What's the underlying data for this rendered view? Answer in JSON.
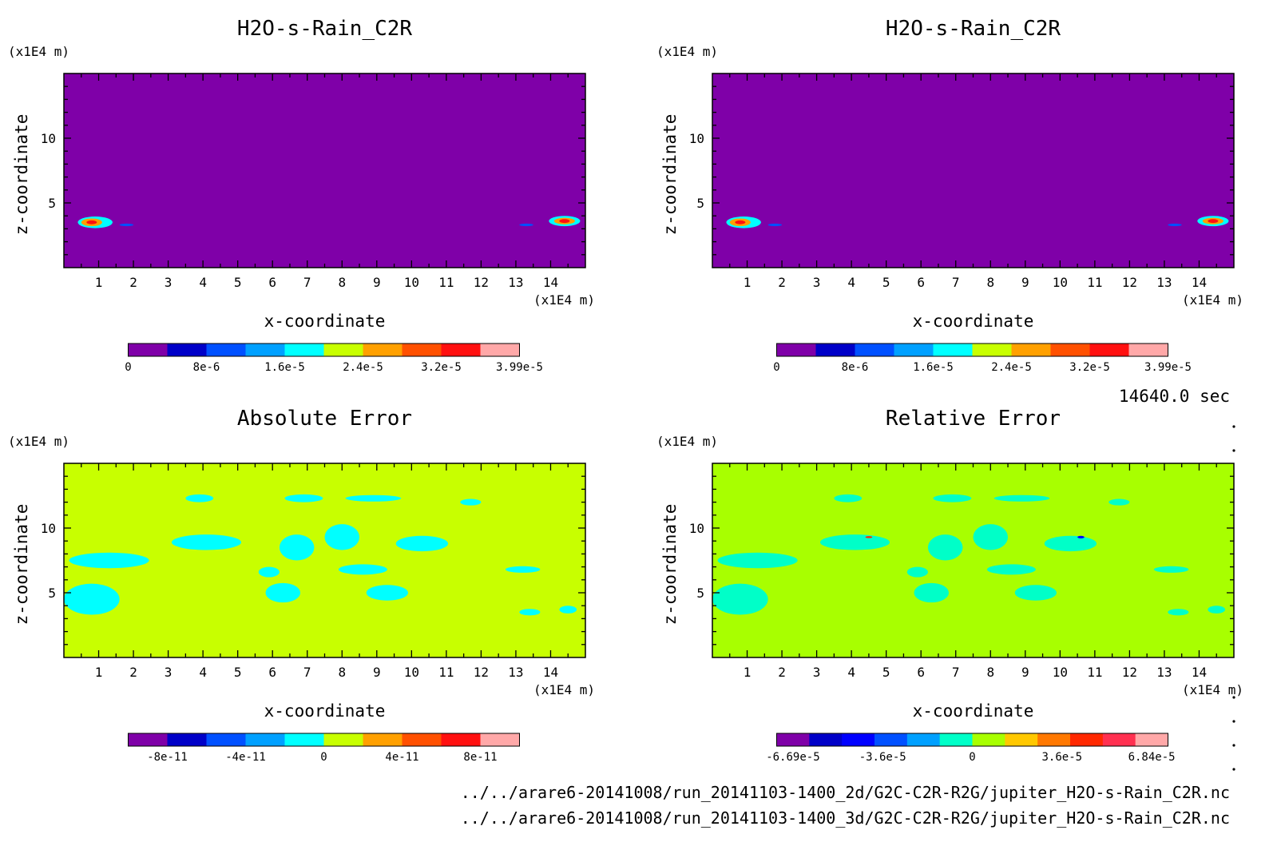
{
  "footer": {
    "time": "14640.0 sec",
    "path_2d": "../../arare6-20141008/run_20141103-1400_2d/G2C-C2R-R2G/jupiter_H2O-s-Rain_C2R.nc",
    "path_3d": "../../arare6-20141008/run_20141103-1400_3d/G2C-C2R-R2G/jupiter_H2O-s-Rain_C2R.nc"
  },
  "chart_data": [
    {
      "type": "heatmap",
      "title": "H2O-s-Rain_C2R",
      "xlabel": "x-coordinate",
      "ylabel": "z-coordinate",
      "x_unit": "(x1E4 m)",
      "y_unit": "(x1E4 m)",
      "xlim": [
        0,
        15
      ],
      "ylim": [
        0,
        15
      ],
      "x_ticks": [
        1,
        2,
        3,
        4,
        5,
        6,
        7,
        8,
        9,
        10,
        11,
        12,
        13,
        14
      ],
      "y_ticks": [
        5,
        10
      ],
      "background": "#7f00a8",
      "colorbar": {
        "colors": [
          "#7f00a8",
          "#0000c8",
          "#0050ff",
          "#00a0ff",
          "#00ffff",
          "#c8ff00",
          "#ffa000",
          "#ff5000",
          "#ff1010",
          "#ffa8a8"
        ],
        "tick_labels": [
          "0",
          "8e-6",
          "1.6e-5",
          "2.4e-5",
          "3.2e-5",
          "3.99e-5"
        ],
        "min": 0,
        "max": 3.99e-05
      },
      "features": [
        {
          "x": 0.9,
          "z": 3.5,
          "w": 1.0,
          "h": 0.9,
          "color": "#00ffff"
        },
        {
          "x": 0.8,
          "z": 3.5,
          "w": 0.6,
          "h": 0.6,
          "color": "#ffa000"
        },
        {
          "x": 0.8,
          "z": 3.5,
          "w": 0.3,
          "h": 0.3,
          "color": "#ff1010"
        },
        {
          "x": 1.8,
          "z": 3.3,
          "w": 0.4,
          "h": 0.2,
          "color": "#0050ff"
        },
        {
          "x": 13.3,
          "z": 3.3,
          "w": 0.4,
          "h": 0.2,
          "color": "#0050ff"
        },
        {
          "x": 14.4,
          "z": 3.6,
          "w": 0.9,
          "h": 0.8,
          "color": "#00ffff"
        },
        {
          "x": 14.4,
          "z": 3.6,
          "w": 0.6,
          "h": 0.5,
          "color": "#ffa000"
        },
        {
          "x": 14.4,
          "z": 3.6,
          "w": 0.3,
          "h": 0.3,
          "color": "#ff1010"
        }
      ]
    },
    {
      "type": "heatmap",
      "title": "H2O-s-Rain_C2R",
      "xlabel": "x-coordinate",
      "ylabel": "z-coordinate",
      "x_unit": "(x1E4 m)",
      "y_unit": "(x1E4 m)",
      "xlim": [
        0,
        15
      ],
      "ylim": [
        0,
        15
      ],
      "x_ticks": [
        1,
        2,
        3,
        4,
        5,
        6,
        7,
        8,
        9,
        10,
        11,
        12,
        13,
        14
      ],
      "y_ticks": [
        5,
        10
      ],
      "background": "#7f00a8",
      "colorbar": {
        "colors": [
          "#7f00a8",
          "#0000c8",
          "#0050ff",
          "#00a0ff",
          "#00ffff",
          "#c8ff00",
          "#ffa000",
          "#ff5000",
          "#ff1010",
          "#ffa8a8"
        ],
        "tick_labels": [
          "0",
          "8e-6",
          "1.6e-5",
          "2.4e-5",
          "3.2e-5",
          "3.99e-5"
        ],
        "min": 0,
        "max": 3.99e-05
      },
      "features": [
        {
          "x": 0.9,
          "z": 3.5,
          "w": 1.0,
          "h": 0.9,
          "color": "#00ffff"
        },
        {
          "x": 0.8,
          "z": 3.5,
          "w": 0.6,
          "h": 0.6,
          "color": "#ffa000"
        },
        {
          "x": 0.8,
          "z": 3.5,
          "w": 0.3,
          "h": 0.3,
          "color": "#ff1010"
        },
        {
          "x": 1.8,
          "z": 3.3,
          "w": 0.4,
          "h": 0.2,
          "color": "#0050ff"
        },
        {
          "x": 13.3,
          "z": 3.3,
          "w": 0.4,
          "h": 0.2,
          "color": "#0050ff"
        },
        {
          "x": 14.4,
          "z": 3.6,
          "w": 0.9,
          "h": 0.8,
          "color": "#00ffff"
        },
        {
          "x": 14.4,
          "z": 3.6,
          "w": 0.6,
          "h": 0.5,
          "color": "#ffa000"
        },
        {
          "x": 14.4,
          "z": 3.6,
          "w": 0.3,
          "h": 0.3,
          "color": "#ff1010"
        }
      ]
    },
    {
      "type": "heatmap",
      "title": "Absolute Error",
      "xlabel": "x-coordinate",
      "ylabel": "z-coordinate",
      "x_unit": "(x1E4 m)",
      "y_unit": "(x1E4 m)",
      "xlim": [
        0,
        15
      ],
      "ylim": [
        0,
        15
      ],
      "x_ticks": [
        1,
        2,
        3,
        4,
        5,
        6,
        7,
        8,
        9,
        10,
        11,
        12,
        13,
        14
      ],
      "y_ticks": [
        5,
        10
      ],
      "background": "#c8ff00",
      "colorbar": {
        "colors": [
          "#7f00a8",
          "#0000c8",
          "#0050ff",
          "#00a0ff",
          "#00ffff",
          "#c8ff00",
          "#ffa000",
          "#ff5000",
          "#ff1010",
          "#ffa8a8"
        ],
        "tick_labels": [
          "-8e-11",
          "-4e-11",
          "0",
          "4e-11",
          "8e-11"
        ],
        "min": -1e-10,
        "max": 1e-10
      },
      "features": [
        {
          "x": 3.9,
          "z": 12.3,
          "w": 0.8,
          "h": 0.6,
          "color": "#00ffff"
        },
        {
          "x": 6.9,
          "z": 12.3,
          "w": 1.1,
          "h": 0.6,
          "color": "#00ffff"
        },
        {
          "x": 8.9,
          "z": 12.3,
          "w": 1.6,
          "h": 0.5,
          "color": "#00ffff"
        },
        {
          "x": 11.7,
          "z": 12.0,
          "w": 0.6,
          "h": 0.5,
          "color": "#00ffff"
        },
        {
          "x": 4.1,
          "z": 8.9,
          "w": 2.0,
          "h": 1.2,
          "color": "#00ffff"
        },
        {
          "x": 6.7,
          "z": 8.5,
          "w": 1.0,
          "h": 2.0,
          "color": "#00ffff"
        },
        {
          "x": 8.0,
          "z": 9.3,
          "w": 1.0,
          "h": 2.0,
          "color": "#00ffff"
        },
        {
          "x": 10.3,
          "z": 8.8,
          "w": 1.5,
          "h": 1.2,
          "color": "#00ffff"
        },
        {
          "x": 1.3,
          "z": 7.5,
          "w": 2.3,
          "h": 1.2,
          "color": "#00ffff"
        },
        {
          "x": 0.8,
          "z": 4.5,
          "w": 1.6,
          "h": 2.4,
          "color": "#00ffff"
        },
        {
          "x": 8.6,
          "z": 6.8,
          "w": 1.4,
          "h": 0.8,
          "color": "#00ffff"
        },
        {
          "x": 9.3,
          "z": 5.0,
          "w": 1.2,
          "h": 1.2,
          "color": "#00ffff"
        },
        {
          "x": 6.3,
          "z": 5.0,
          "w": 1.0,
          "h": 1.5,
          "color": "#00ffff"
        },
        {
          "x": 5.9,
          "z": 6.6,
          "w": 0.6,
          "h": 0.8,
          "color": "#00ffff"
        },
        {
          "x": 13.2,
          "z": 6.8,
          "w": 1.0,
          "h": 0.5,
          "color": "#00ffff"
        },
        {
          "x": 13.4,
          "z": 3.5,
          "w": 0.6,
          "h": 0.5,
          "color": "#00ffff"
        },
        {
          "x": 14.5,
          "z": 3.7,
          "w": 0.5,
          "h": 0.6,
          "color": "#00ffff"
        }
      ]
    },
    {
      "type": "heatmap",
      "title": "Relative Error",
      "xlabel": "x-coordinate",
      "ylabel": "z-coordinate",
      "x_unit": "(x1E4 m)",
      "y_unit": "(x1E4 m)",
      "xlim": [
        0,
        15
      ],
      "ylim": [
        0,
        15
      ],
      "x_ticks": [
        1,
        2,
        3,
        4,
        5,
        6,
        7,
        8,
        9,
        10,
        11,
        12,
        13,
        14
      ],
      "y_ticks": [
        5,
        10
      ],
      "background": "#a8ff00",
      "colorbar": {
        "colors": [
          "#7f00a8",
          "#0000c8",
          "#0000ff",
          "#0050ff",
          "#00a0ff",
          "#00ffc8",
          "#a8ff00",
          "#ffc800",
          "#ff7800",
          "#ff2800",
          "#ff3050",
          "#ffa8a8"
        ],
        "tick_labels": [
          "-6.69e-5",
          "-3.6e-5",
          "0",
          "3.6e-5",
          "6.84e-5"
        ],
        "min": -6.69e-05,
        "max": 6.84e-05
      },
      "features": [
        {
          "x": 3.9,
          "z": 12.3,
          "w": 0.8,
          "h": 0.6,
          "color": "#00ffc8"
        },
        {
          "x": 6.9,
          "z": 12.3,
          "w": 1.1,
          "h": 0.6,
          "color": "#00ffc8"
        },
        {
          "x": 8.9,
          "z": 12.3,
          "w": 1.6,
          "h": 0.5,
          "color": "#00ffc8"
        },
        {
          "x": 11.7,
          "z": 12.0,
          "w": 0.6,
          "h": 0.5,
          "color": "#00ffc8"
        },
        {
          "x": 4.1,
          "z": 8.9,
          "w": 2.0,
          "h": 1.2,
          "color": "#00ffc8"
        },
        {
          "x": 6.7,
          "z": 8.5,
          "w": 1.0,
          "h": 2.0,
          "color": "#00ffc8"
        },
        {
          "x": 8.0,
          "z": 9.3,
          "w": 1.0,
          "h": 2.0,
          "color": "#00ffc8"
        },
        {
          "x": 10.3,
          "z": 8.8,
          "w": 1.5,
          "h": 1.2,
          "color": "#00ffc8"
        },
        {
          "x": 1.3,
          "z": 7.5,
          "w": 2.3,
          "h": 1.2,
          "color": "#00ffc8"
        },
        {
          "x": 0.8,
          "z": 4.5,
          "w": 1.6,
          "h": 2.4,
          "color": "#00ffc8"
        },
        {
          "x": 8.6,
          "z": 6.8,
          "w": 1.4,
          "h": 0.8,
          "color": "#00ffc8"
        },
        {
          "x": 9.3,
          "z": 5.0,
          "w": 1.2,
          "h": 1.2,
          "color": "#00ffc8"
        },
        {
          "x": 6.3,
          "z": 5.0,
          "w": 1.0,
          "h": 1.5,
          "color": "#00ffc8"
        },
        {
          "x": 5.9,
          "z": 6.6,
          "w": 0.6,
          "h": 0.8,
          "color": "#00ffc8"
        },
        {
          "x": 13.2,
          "z": 6.8,
          "w": 1.0,
          "h": 0.5,
          "color": "#00ffc8"
        },
        {
          "x": 13.4,
          "z": 3.5,
          "w": 0.6,
          "h": 0.5,
          "color": "#00ffc8"
        },
        {
          "x": 14.5,
          "z": 3.7,
          "w": 0.5,
          "h": 0.6,
          "color": "#00ffc8"
        },
        {
          "x": 4.5,
          "z": 9.3,
          "w": 0.2,
          "h": 0.15,
          "color": "#ff2800"
        },
        {
          "x": 10.6,
          "z": 9.3,
          "w": 0.2,
          "h": 0.2,
          "color": "#0000ff"
        }
      ]
    }
  ]
}
